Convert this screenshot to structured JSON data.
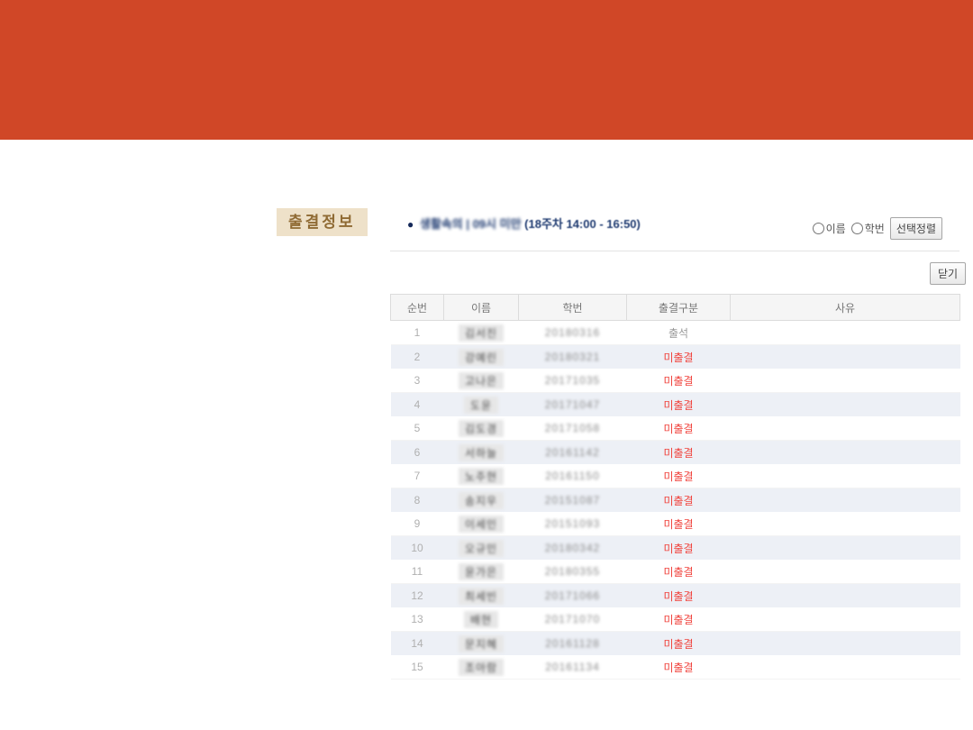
{
  "colors": {
    "band": "#d04727",
    "label_bg": "#eee1c9",
    "label_text": "#8f6a33",
    "session_text": "#1e3a70",
    "status_absent": "#f0423c",
    "stripe_row": "#edf0f6"
  },
  "page_label": "출결정보",
  "session": {
    "bullet": "●",
    "course_redacted": "생활속의 | 09시 미만",
    "schedule": "(18주차 14:00 - 16:50)"
  },
  "sort_controls": {
    "radio_name_label": "이름",
    "radio_id_label": "학번",
    "sort_button_label": "선택정렬"
  },
  "close_button_label": "닫기",
  "table": {
    "headers": [
      "순번",
      "이름",
      "학번",
      "출결구분",
      "사유"
    ],
    "rows": [
      {
        "no": "1",
        "name": "김서진",
        "student_id": "20180316",
        "status": "출석",
        "reason": ""
      },
      {
        "no": "2",
        "name": "강예린",
        "student_id": "20180321",
        "status": "미출결",
        "reason": ""
      },
      {
        "no": "3",
        "name": "고나은",
        "student_id": "20171035",
        "status": "미출결",
        "reason": ""
      },
      {
        "no": "4",
        "name": "도윤",
        "student_id": "20171047",
        "status": "미출결",
        "reason": ""
      },
      {
        "no": "5",
        "name": "김도경",
        "student_id": "20171058",
        "status": "미출결",
        "reason": ""
      },
      {
        "no": "6",
        "name": "서하늘",
        "student_id": "20161142",
        "status": "미출결",
        "reason": ""
      },
      {
        "no": "7",
        "name": "노주현",
        "student_id": "20161150",
        "status": "미출결",
        "reason": ""
      },
      {
        "no": "8",
        "name": "송지우",
        "student_id": "20151087",
        "status": "미출결",
        "reason": ""
      },
      {
        "no": "9",
        "name": "이세민",
        "student_id": "20151093",
        "status": "미출결",
        "reason": ""
      },
      {
        "no": "10",
        "name": "오규민",
        "student_id": "20180342",
        "status": "미출결",
        "reason": ""
      },
      {
        "no": "11",
        "name": "윤가은",
        "student_id": "20180355",
        "status": "미출결",
        "reason": ""
      },
      {
        "no": "12",
        "name": "최세빈",
        "student_id": "20171066",
        "status": "미출결",
        "reason": ""
      },
      {
        "no": "13",
        "name": "배현",
        "student_id": "20171070",
        "status": "미출결",
        "reason": ""
      },
      {
        "no": "14",
        "name": "문지혜",
        "student_id": "20161128",
        "status": "미출결",
        "reason": ""
      },
      {
        "no": "15",
        "name": "조아람",
        "student_id": "20161134",
        "status": "미출결",
        "reason": ""
      }
    ]
  }
}
